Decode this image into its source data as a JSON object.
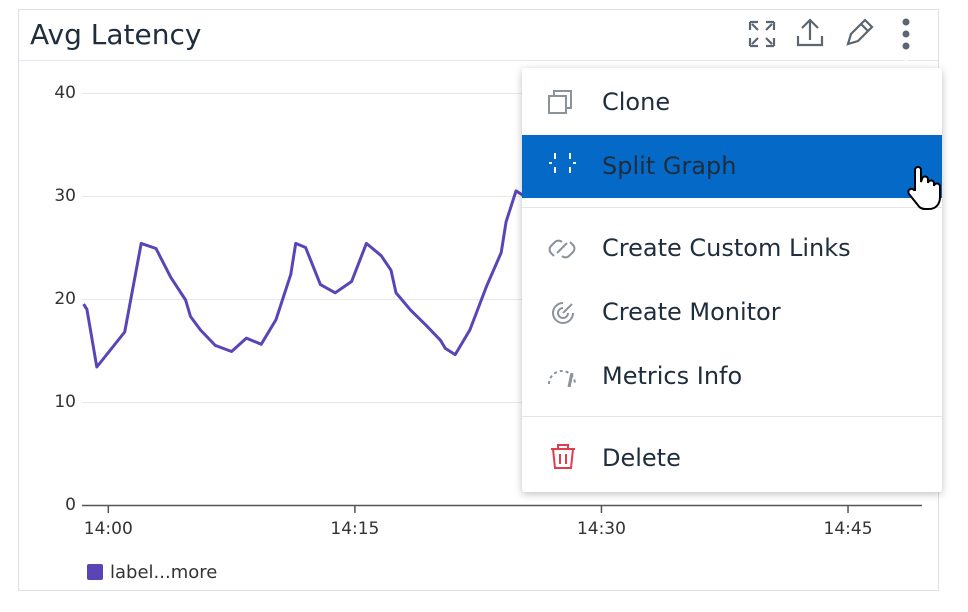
{
  "header": {
    "title": "Avg Latency"
  },
  "chart_data": {
    "type": "line",
    "x": [
      -1.5,
      -1.3,
      -0.7,
      1.0,
      2.0,
      2.9,
      3.8,
      4.7,
      5.0,
      5.6,
      6.5,
      7.5,
      8.4,
      9.3,
      10.2,
      11.1,
      11.4,
      12.0,
      12.9,
      13.8,
      14.8,
      15.7,
      16.6,
      17.2,
      17.5,
      18.4,
      19.3,
      20.2,
      20.5,
      21.1,
      22.0,
      23.0,
      23.9,
      24.2,
      24.8,
      25.2
    ],
    "series": [
      {
        "name": "label...more",
        "color": "#5b45b6",
        "values": [
          19.5,
          19.0,
          13.4,
          16.8,
          25.4,
          24.9,
          22.1,
          19.9,
          18.3,
          17.0,
          15.5,
          14.9,
          16.2,
          15.6,
          18.0,
          22.4,
          25.4,
          25.0,
          21.4,
          20.6,
          21.7,
          25.4,
          24.2,
          22.8,
          20.6,
          18.9,
          17.5,
          16.0,
          15.2,
          14.6,
          17.0,
          21.2,
          24.5,
          27.5,
          30.5,
          30.1
        ]
      }
    ],
    "xlim": [
      -1.6,
      49.5
    ],
    "xticks": [
      {
        "value": 0,
        "label": "14:00"
      },
      {
        "value": 15,
        "label": "14:15"
      },
      {
        "value": 30,
        "label": "14:30"
      },
      {
        "value": 45,
        "label": "14:45"
      }
    ],
    "ylim": [
      0,
      40
    ],
    "yticks": [
      0,
      10,
      20,
      30,
      40
    ],
    "grid": true
  },
  "menu": {
    "items": [
      "Clone",
      "Split Graph",
      "Create Custom Links",
      "Create Monitor",
      "Metrics Info",
      "Delete"
    ]
  }
}
